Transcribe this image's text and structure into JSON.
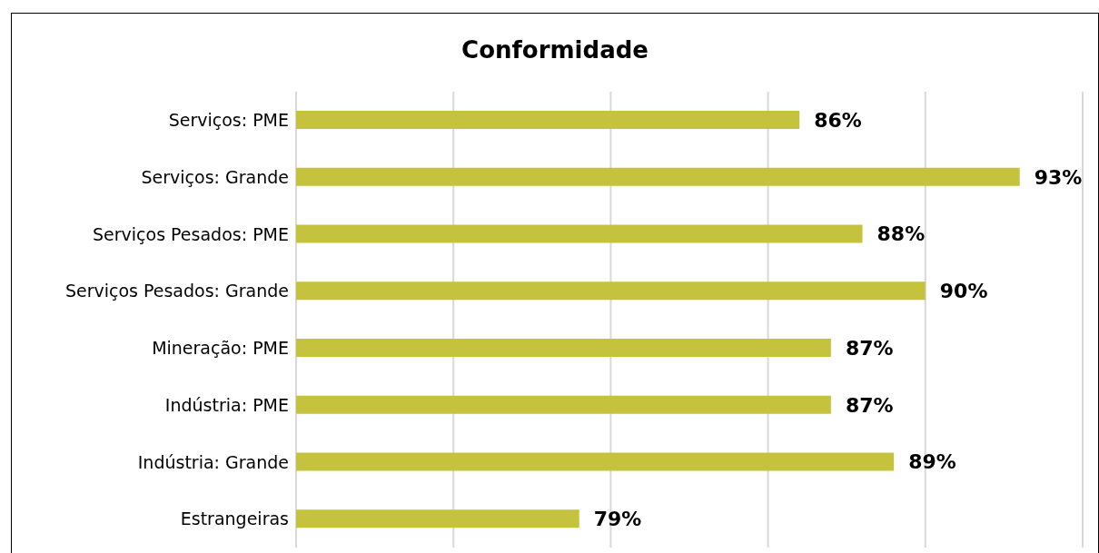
{
  "chart_data": {
    "type": "bar",
    "orientation": "horizontal",
    "title": "Conformidade",
    "categories": [
      "Serviços: PME",
      "Serviços: Grande",
      "Serviços Pesados: PME",
      "Serviços Pesados: Grande",
      "Mineração: PME",
      "Indústria: PME",
      "Indústria: Grande",
      "Estrangeiras"
    ],
    "values": [
      86,
      93,
      88,
      90,
      87,
      87,
      89,
      79
    ],
    "value_labels": [
      "86%",
      "93%",
      "88%",
      "90%",
      "87%",
      "87%",
      "89%",
      "79%"
    ],
    "color": "#c5c33e",
    "xlim": [
      70,
      95
    ],
    "xticks": [
      {
        "value": 70,
        "label": null
      },
      {
        "value": 75,
        "label": null
      },
      {
        "value": 80,
        "label": null
      },
      {
        "value": 85,
        "label": null
      },
      {
        "value": 90,
        "label": null
      },
      {
        "value": 95,
        "label": null
      }
    ],
    "tick_labels": "y",
    "grid": "x"
  }
}
